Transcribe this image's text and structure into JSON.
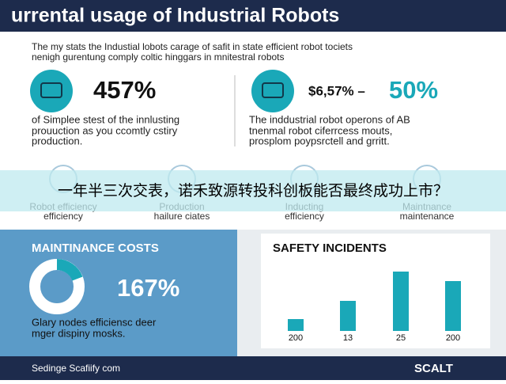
{
  "header": {
    "title": "urrental usage of Industrial Robots"
  },
  "intro": [
    "The my stats the Industial lobots carage of safit in state efficient robot tociets",
    "nenigh gurentung comply coltic hinggars in mnitestral robots"
  ],
  "stats": [
    {
      "value": "457%",
      "text": [
        "of Simplee stest of the innlusting",
        "prouuction as you ccomtly cstiry",
        "production."
      ]
    },
    {
      "value": "$6,57% –",
      "highlight": "50%",
      "text": [
        "The inddustrial robot operons of AB",
        "tnenmal robot ciferrcess mouts,",
        "prosplom poypsrctell and grritt."
      ]
    }
  ],
  "features": [
    [
      "Robot efficiency",
      "efficiency"
    ],
    [
      "Production",
      "hailure ciates"
    ],
    [
      "Inducting",
      "efficiency"
    ],
    [
      "Maintnance",
      "maintenance"
    ]
  ],
  "caption": "一年半三次交表，诺禾致源转投科创板能否最终成功上市？",
  "maintenance": {
    "title": "MAINTINANCE COSTS",
    "value": "167%",
    "text": [
      "Glary nodes efficiensc deer",
      "mger dispiny mosks."
    ]
  },
  "safety": {
    "title": "SAFETY INCIDENTS",
    "labels": [
      "200",
      "13",
      "25",
      "200"
    ]
  },
  "footer": {
    "left": "Sedinge Scafiify com",
    "right": "SCALT"
  }
}
